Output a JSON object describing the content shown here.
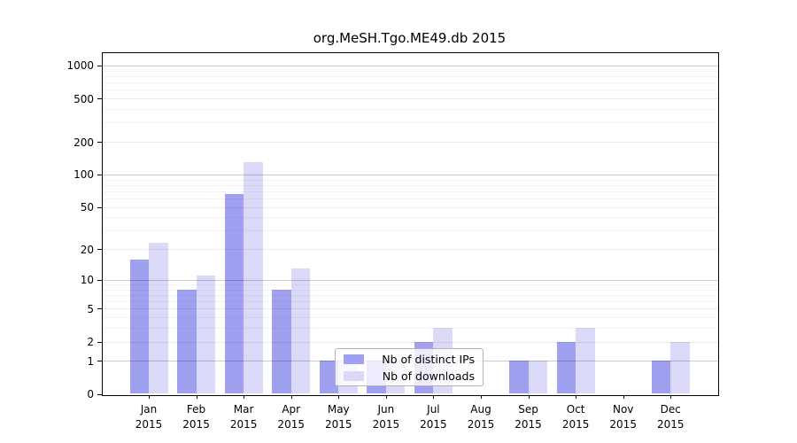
{
  "chart_data": {
    "type": "bar",
    "title": "org.MeSH.Tgo.ME49.db 2015",
    "categories": [
      "Jan",
      "Feb",
      "Mar",
      "Apr",
      "May",
      "Jun",
      "Jul",
      "Aug",
      "Sep",
      "Oct",
      "Nov",
      "Dec"
    ],
    "category_year": "2015",
    "series": [
      {
        "name": "Nb of distinct IPs",
        "color": "#a0a0f0",
        "values": [
          16,
          8,
          66,
          8,
          1,
          1,
          2,
          0,
          1,
          2,
          0,
          1
        ]
      },
      {
        "name": "Nb of downloads",
        "color": "#dadaf8",
        "values": [
          23,
          11,
          130,
          13,
          1,
          1,
          3,
          0,
          1,
          3,
          0,
          2
        ]
      }
    ],
    "yscale": "log1p",
    "ytick_values": [
      0,
      1,
      2,
      5,
      10,
      20,
      50,
      100,
      200,
      500,
      1000
    ],
    "ylim": [
      0,
      1270
    ],
    "grid": "horizontal",
    "legend": {
      "position": "lower-center",
      "entries": [
        "Nb of distinct IPs",
        "Nb of downloads"
      ]
    }
  }
}
